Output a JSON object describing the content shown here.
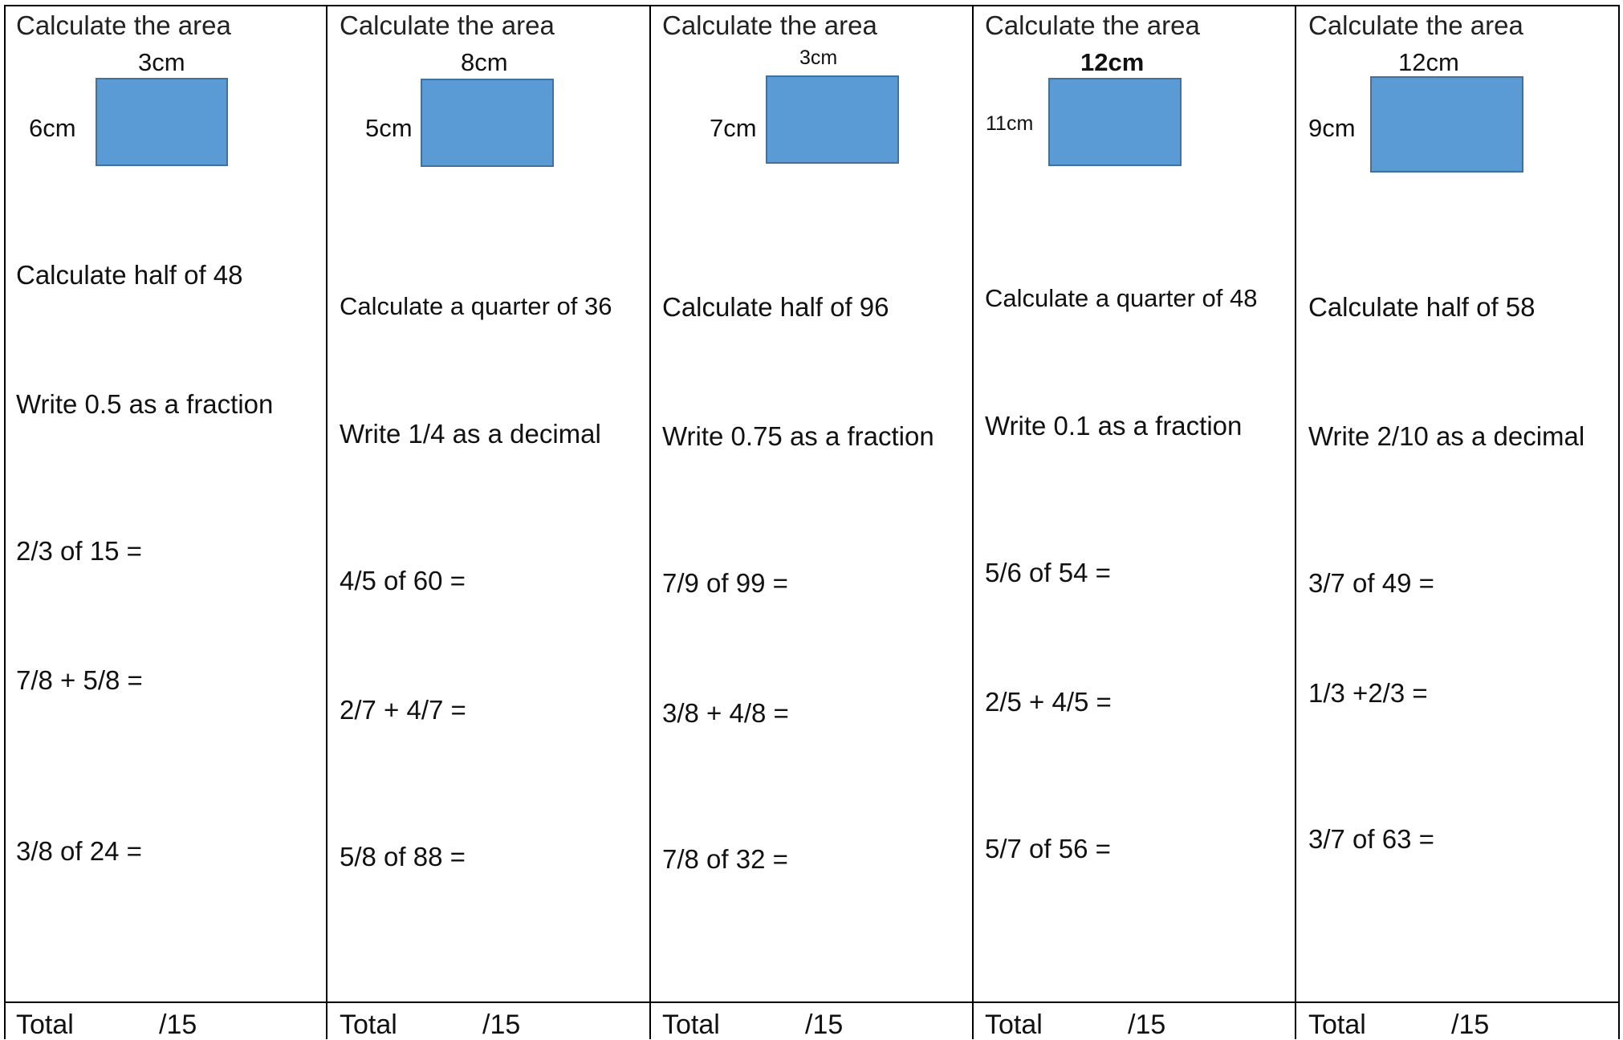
{
  "worksheet": {
    "columns": [
      {
        "heading": "Calculate the area",
        "rect": {
          "width_label": "3cm",
          "height_label": "6cm",
          "color": "#5b9bd5"
        },
        "questions": [
          "Calculate half of 48",
          "Write 0.5 as a fraction",
          "2/3 of 15 =",
          "7/8 + 5/8 =",
          "3/8 of 24 ="
        ],
        "total_label": "Total",
        "total_max": "/15"
      },
      {
        "heading": "Calculate the area",
        "rect": {
          "width_label": "8cm",
          "height_label": "5cm",
          "color": "#5b9bd5"
        },
        "questions": [
          "Calculate a quarter of 36",
          "Write 1/4 as a decimal",
          "4/5 of 60 =",
          "2/7 + 4/7 =",
          "5/8 of 88 ="
        ],
        "total_label": "Total",
        "total_max": "/15"
      },
      {
        "heading": "Calculate the area",
        "rect": {
          "width_label": "3cm",
          "height_label": "7cm",
          "color": "#5b9bd5"
        },
        "questions": [
          "Calculate half of 96",
          "Write 0.75 as a fraction",
          "7/9  of 99 =",
          "3/8 + 4/8 =",
          "7/8 of 32 ="
        ],
        "total_label": "Total",
        "total_max": "/15"
      },
      {
        "heading": "Calculate the area",
        "rect": {
          "width_label": "12cm",
          "height_label": "11cm",
          "color": "#5b9bd5"
        },
        "questions": [
          "Calculate a quarter of 48",
          "Write 0.1 as a fraction",
          "5/6 of 54 =",
          "2/5 + 4/5 =",
          "5/7 of 56 ="
        ],
        "total_label": "Total",
        "total_max": "/15"
      },
      {
        "heading": "Calculate the area",
        "rect": {
          "width_label": "12cm",
          "height_label": "9cm",
          "color": "#5b9bd5"
        },
        "questions": [
          "Calculate half of 58",
          "Write 2/10 as a decimal",
          "3/7 of 49 =",
          "1/3 +2/3 =",
          "3/7 of 63 ="
        ],
        "total_label": "Total",
        "total_max": "/15"
      }
    ]
  }
}
